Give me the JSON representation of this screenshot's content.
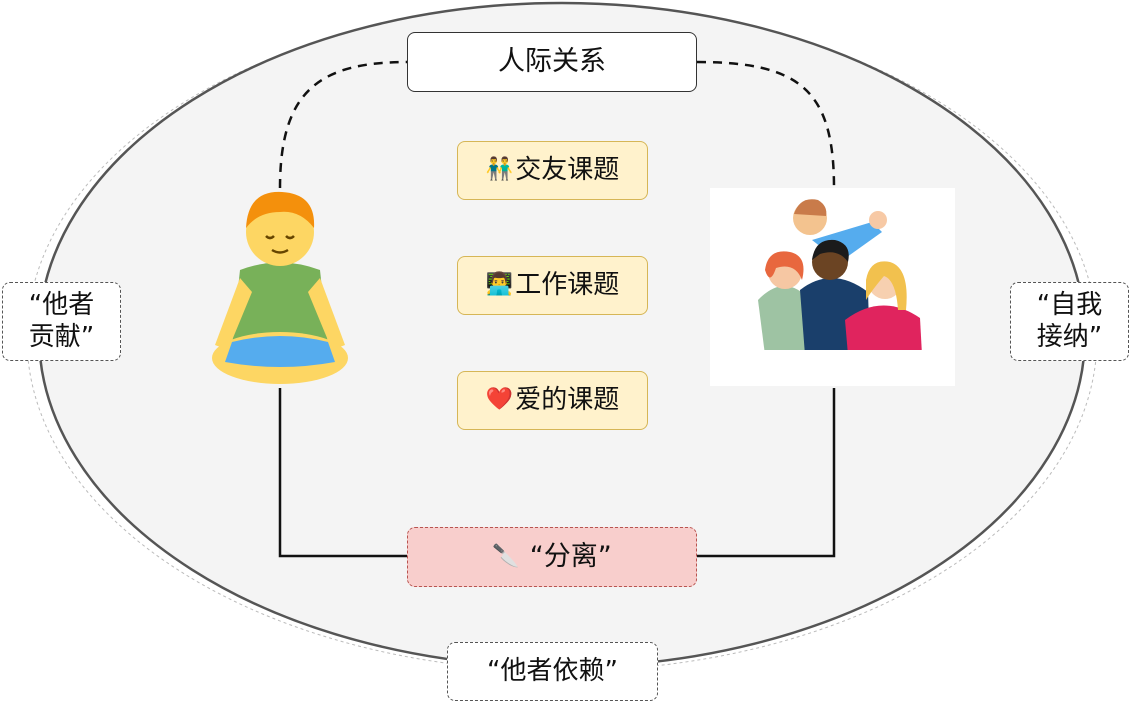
{
  "diagram": {
    "title": "人际关系",
    "topics": [
      {
        "icon": "👬",
        "label": "交友课题"
      },
      {
        "icon": "👨‍💻",
        "label": "工作课题"
      },
      {
        "icon": "❤️",
        "label": "爱的课题"
      }
    ],
    "left_label": "“他者\n贡献”",
    "right_label": "“自我\n接纳”",
    "bottom_label": "“他者依赖”",
    "separation": {
      "icon": "🔪",
      "label": "“分离”"
    },
    "colors": {
      "ellipse_fill": "#f4f4f4",
      "ellipse_stroke": "#555555",
      "topic_fill": "#fff2cc",
      "topic_stroke": "#d6b656",
      "separation_fill": "#f8cecc",
      "separation_stroke": "#b85450"
    }
  }
}
